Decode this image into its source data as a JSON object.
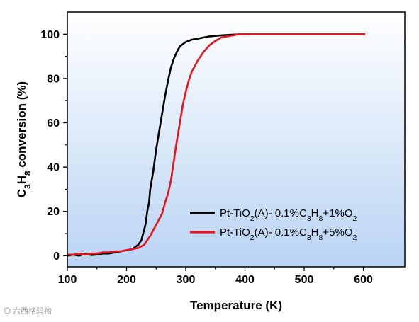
{
  "chart_data": {
    "type": "line",
    "xlabel": "Temperature (K)",
    "ylabel": {
      "parts": [
        {
          "t": "C",
          "sub": false
        },
        {
          "t": "3",
          "sub": true
        },
        {
          "t": "H",
          "sub": false
        },
        {
          "t": "8",
          "sub": true
        },
        {
          "t": " conversion (%)",
          "sub": false
        }
      ]
    },
    "xlim": [
      100,
      670
    ],
    "ylim": [
      -5,
      110
    ],
    "xticks": [
      100,
      200,
      300,
      400,
      500,
      600
    ],
    "yticks": [
      0,
      20,
      40,
      60,
      80,
      100
    ],
    "background_gradient": [
      "#ffffff",
      "#b9d4f3"
    ],
    "legend_position": "lower-right",
    "series": [
      {
        "name": {
          "parts": [
            {
              "t": "Pt-TiO",
              "sub": false
            },
            {
              "t": "2",
              "sub": true
            },
            {
              "t": "(A)- 0.1%C",
              "sub": false
            },
            {
              "t": "3",
              "sub": true
            },
            {
              "t": "H",
              "sub": false
            },
            {
              "t": "8",
              "sub": true
            },
            {
              "t": "+1%O",
              "sub": false
            },
            {
              "t": "2",
              "sub": true
            }
          ]
        },
        "color": "#000000",
        "x": [
          100,
          110,
          120,
          130,
          140,
          150,
          160,
          170,
          180,
          190,
          200,
          210,
          215,
          220,
          225,
          228,
          232,
          235,
          238,
          240,
          245,
          250,
          255,
          260,
          265,
          270,
          275,
          280,
          285,
          290,
          300,
          310,
          320,
          330,
          340,
          360,
          380,
          400,
          450,
          500,
          550,
          603
        ],
        "y": [
          0,
          0.5,
          0,
          1,
          0.3,
          0.5,
          1,
          1,
          1.5,
          2,
          2.5,
          3,
          4,
          5,
          7,
          10,
          14,
          20,
          24,
          30,
          38,
          48,
          56,
          64,
          72,
          79,
          85,
          89,
          92,
          94.5,
          96.5,
          97.5,
          98,
          98.5,
          99,
          99.5,
          99.8,
          100,
          100,
          100,
          100,
          100
        ]
      },
      {
        "name": {
          "parts": [
            {
              "t": "Pt-TiO",
              "sub": false
            },
            {
              "t": "2",
              "sub": true
            },
            {
              "t": "(A)- 0.1%C",
              "sub": false
            },
            {
              "t": "3",
              "sub": true
            },
            {
              "t": "H",
              "sub": false
            },
            {
              "t": "8",
              "sub": true
            },
            {
              "t": "+5%O",
              "sub": false
            },
            {
              "t": "2",
              "sub": true
            }
          ]
        },
        "color": "#e8141b",
        "x": [
          100,
          110,
          120,
          130,
          140,
          150,
          160,
          170,
          180,
          190,
          200,
          210,
          220,
          230,
          240,
          250,
          260,
          265,
          270,
          275,
          280,
          285,
          290,
          295,
          300,
          305,
          310,
          320,
          330,
          340,
          350,
          360,
          370,
          380,
          390,
          400,
          450,
          500,
          550,
          603
        ],
        "y": [
          0.5,
          0.5,
          1,
          0.5,
          1,
          1,
          1.5,
          1.5,
          2,
          2,
          2.5,
          3,
          3.5,
          5,
          9,
          14,
          19,
          24,
          28,
          34,
          43,
          52,
          60,
          68,
          74,
          79,
          83,
          88,
          92,
          95,
          97,
          98.5,
          99,
          99.5,
          100,
          100,
          100,
          100,
          100,
          100
        ]
      }
    ],
    "watermark": "六西格玛物"
  }
}
